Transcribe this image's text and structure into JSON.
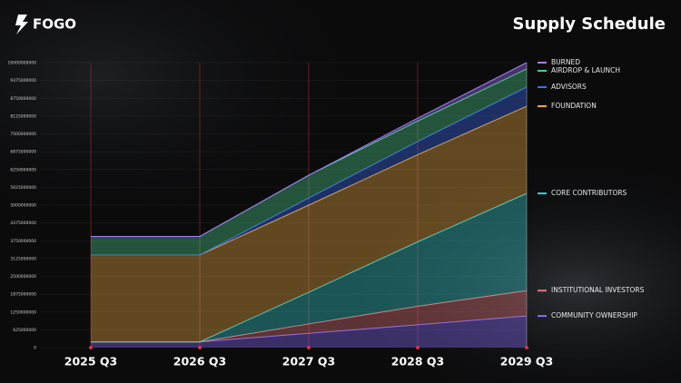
{
  "brand": "FOGO",
  "chart_data": {
    "type": "stacked_area",
    "title": "Supply Schedule",
    "categories": [
      "2025 Q3",
      "2026 Q3",
      "2027 Q3",
      "2028 Q3",
      "2029 Q3"
    ],
    "series": [
      {
        "name": "COMMUNITY OWNERSHIP",
        "color": "#8b6cff",
        "values": [
          200000000,
          200000000,
          500000000,
          800000000,
          1110000000
        ]
      },
      {
        "name": "INSTITUTIONAL INVESTORS",
        "color": "#e8777a",
        "values": [
          0,
          0,
          330000000,
          650000000,
          890000000
        ]
      },
      {
        "name": "CORE CONTRIBUTORS",
        "color": "#39cfd0",
        "values": [
          0,
          0,
          1110000000,
          2260000000,
          3410000000
        ]
      },
      {
        "name": "FOUNDATION",
        "color": "#f1ad45",
        "values": [
          3050000000,
          3050000000,
          3060000000,
          3060000000,
          3060000000
        ]
      },
      {
        "name": "ADVISORS",
        "color": "#3f6ff2",
        "values": [
          0,
          0,
          250000000,
          460000000,
          670000000
        ]
      },
      {
        "name": "AIRDROP & LAUNCH",
        "color": "#4fd08c",
        "values": [
          650000000,
          650000000,
          800000000,
          720000000,
          640000000
        ]
      },
      {
        "name": "BURNED",
        "color": "#a57cff",
        "values": [
          0,
          0,
          0,
          100000000,
          220000000
        ]
      }
    ],
    "ylim": [
      0,
      10000000000
    ],
    "yticks": [
      0,
      625000000,
      1250000000,
      1875000000,
      2500000000,
      3125000000,
      3750000000,
      4375000000,
      5000000000,
      5625000000,
      6250000000,
      6875000000,
      7500000000,
      8125000000,
      8750000000,
      9375000000,
      10000000000
    ],
    "grid": true
  }
}
